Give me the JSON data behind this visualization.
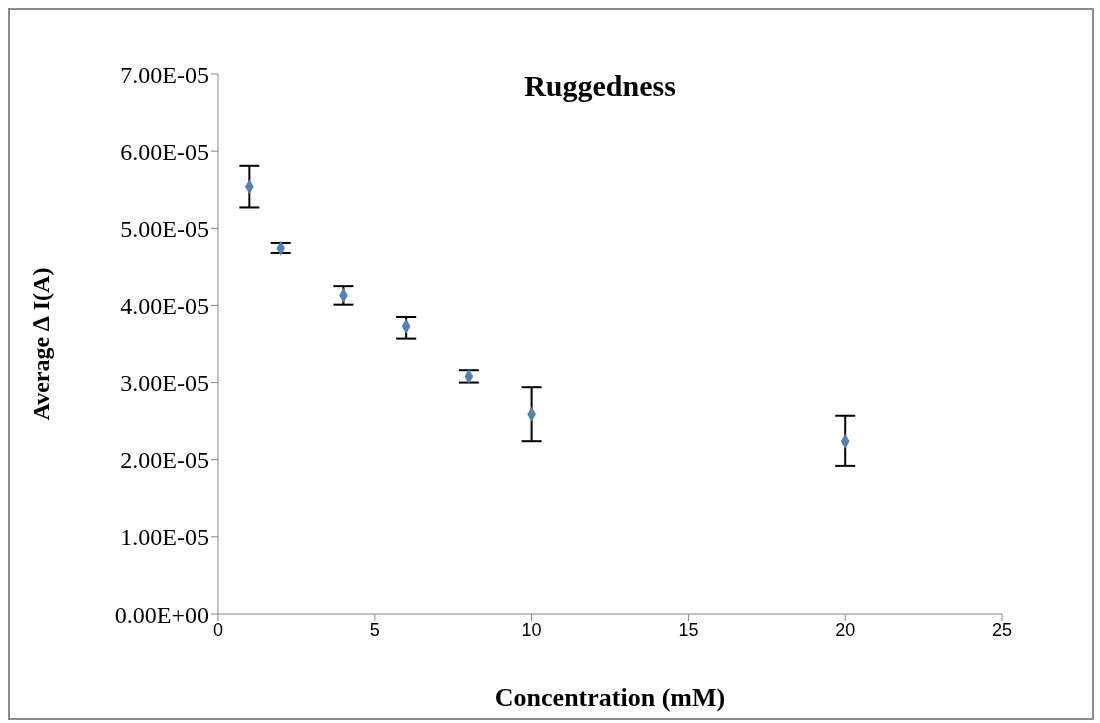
{
  "chart_data": {
    "type": "scatter",
    "title": "Ruggedness",
    "xlabel": "Concentration (mM)",
    "ylabel": "Average  ∆ I(A)",
    "x": [
      1,
      2,
      4,
      6,
      8,
      10,
      20
    ],
    "series": [
      {
        "color": "#4f81bd",
        "values": [
          5.54e-05,
          4.74e-05,
          4.13e-05,
          3.73e-05,
          3.08e-05,
          2.59e-05,
          2.24e-05
        ],
        "errors": [
          [
            5.27e-05,
            5.81e-05
          ],
          [
            4.68e-05,
            4.81e-05
          ],
          [
            4.01e-05,
            4.25e-05
          ],
          [
            3.57e-05,
            3.85e-05
          ],
          [
            3e-05,
            3.16e-05
          ],
          [
            2.24e-05,
            2.94e-05
          ],
          [
            1.92e-05,
            2.57e-05
          ]
        ]
      }
    ],
    "xlim": [
      0,
      25
    ],
    "xticks": [
      0,
      5,
      10,
      15,
      20,
      25
    ],
    "ylim": [
      0,
      7e-05
    ],
    "yticks": [
      {
        "value": 0,
        "label": "0.00E+00"
      },
      {
        "value": 1e-05,
        "label": "1.00E-05"
      },
      {
        "value": 2e-05,
        "label": "2.00E-05"
      },
      {
        "value": 3e-05,
        "label": "3.00E-05"
      },
      {
        "value": 4e-05,
        "label": "4.00E-05"
      },
      {
        "value": 5e-05,
        "label": "5.00E-05"
      },
      {
        "value": 6e-05,
        "label": "6.00E-05"
      },
      {
        "value": 7e-05,
        "label": "7.00E-05"
      }
    ],
    "marker": "diamond",
    "grid": false,
    "legend": false
  }
}
